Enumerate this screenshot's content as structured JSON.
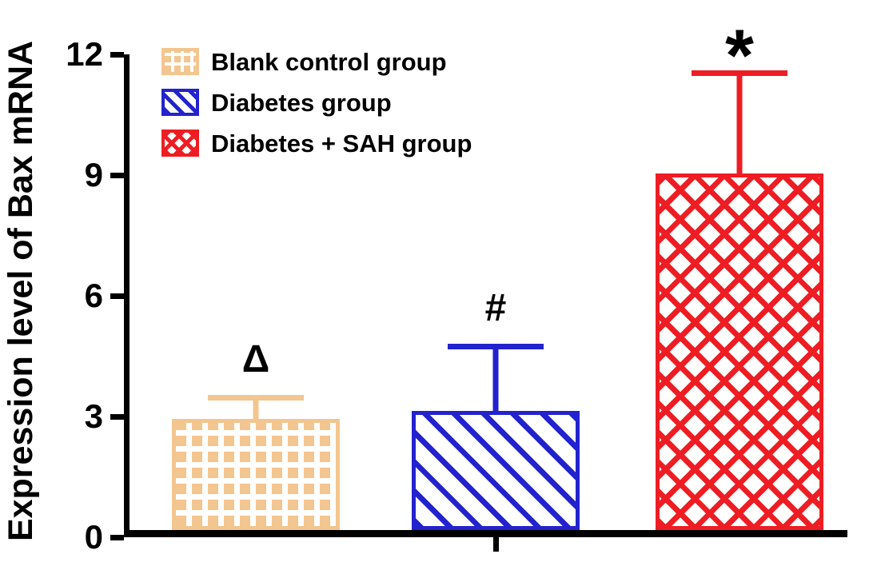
{
  "figure": {
    "background": "#ffffff",
    "axis_color": "#000000",
    "text_color": "#000000"
  },
  "chart_data": {
    "type": "bar",
    "title": "",
    "ylabel": "Expression level of Bax mRNA",
    "xlabel": "",
    "ylim": [
      0,
      12
    ],
    "yticks": [
      0,
      3,
      6,
      9,
      12
    ],
    "grid": false,
    "legend_position": "top-left-inside",
    "categories": [
      "Blank control group",
      "Diabetes group",
      "Diabetes + SAH group"
    ],
    "series": [
      {
        "name": "Blank control group",
        "value": 2.8,
        "error_sd": 0.6,
        "annotation": "Δ",
        "color": "#F3C58F",
        "pattern": "checker"
      },
      {
        "name": "Diabetes group",
        "value": 3.0,
        "error_sd": 1.7,
        "annotation": "#",
        "color": "#2222CE",
        "pattern": "diagonal"
      },
      {
        "name": "Diabetes + SAH group",
        "value": 9.0,
        "error_sd": 2.6,
        "annotation": "*",
        "color": "#EE1D23",
        "pattern": "crosshatch"
      }
    ]
  }
}
